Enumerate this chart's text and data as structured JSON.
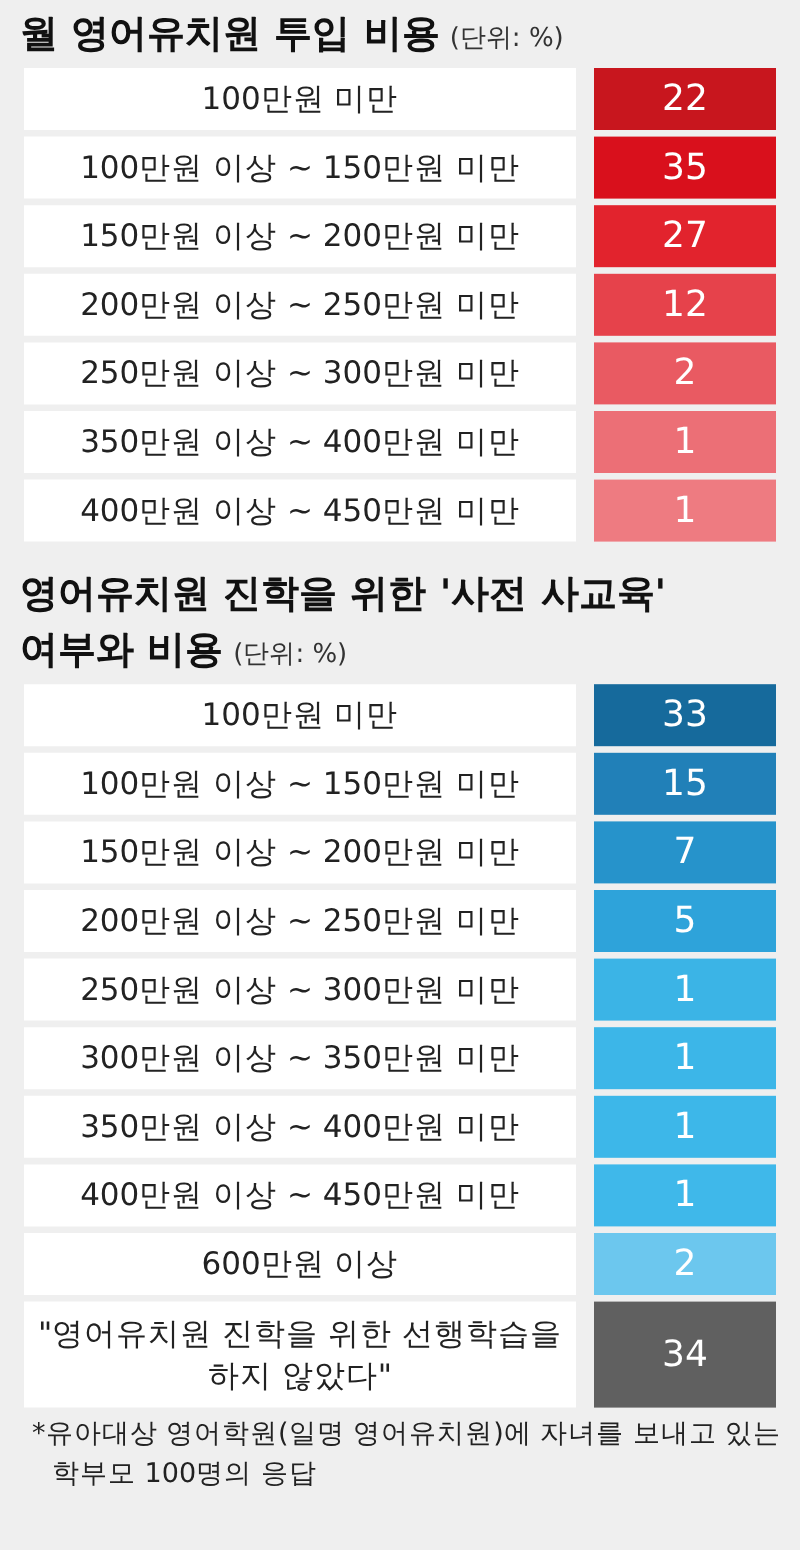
{
  "chart_data": [
    {
      "type": "other",
      "title": "월 영어유치원 투입 비용",
      "subtitle": "(단위: %)",
      "categories": [
        "100만원 미만",
        "100만원 이상 ~ 150만원 미만",
        "150만원 이상 ~ 200만원 미만",
        "200만원 이상 ~ 250만원 미만",
        "250만원 이상 ~ 300만원 미만",
        "350만원 이상 ~ 400만원 미만",
        "400만원 이상 ~ 450만원 미만"
      ],
      "values": [
        22,
        35,
        27,
        12,
        2,
        1,
        1
      ],
      "colors": [
        "#c8161e",
        "#d9101c",
        "#e2232d",
        "#e6424b",
        "#e95a62",
        "#ec6f76",
        "#ee7b81"
      ],
      "data_labels": true
    },
    {
      "type": "other",
      "title": "영어유치원 진학을 위한 '사전 사교육' 여부와 비용",
      "subtitle": "(단위: %)",
      "categories": [
        "100만원 미만",
        "100만원 이상 ~ 150만원 미만",
        "150만원 이상 ~ 200만원 미만",
        "200만원 이상 ~ 250만원 미만",
        "250만원 이상 ~ 300만원 미만",
        "300만원 이상 ~ 350만원 미만",
        "350만원 이상 ~ 400만원 미만",
        "400만원 이상 ~ 450만원 미만",
        "600만원 이상",
        "\"영어유치원 진학을 위한 선행학습을 하지 않았다\""
      ],
      "values": [
        33,
        15,
        7,
        5,
        1,
        1,
        1,
        1,
        2,
        34
      ],
      "colors": [
        "#166a9c",
        "#2180b8",
        "#2693cb",
        "#2ea3da",
        "#3bb4e6",
        "#3cb6e8",
        "#3db7e9",
        "#3fb8ea",
        "#6cc7ee",
        "#606060"
      ],
      "data_labels": true,
      "annotations": [
        "*유아대상 영어학원(일명 영어유치원)에 자녀를 보내고 있는 학부모 100명의 응답"
      ]
    }
  ]
}
